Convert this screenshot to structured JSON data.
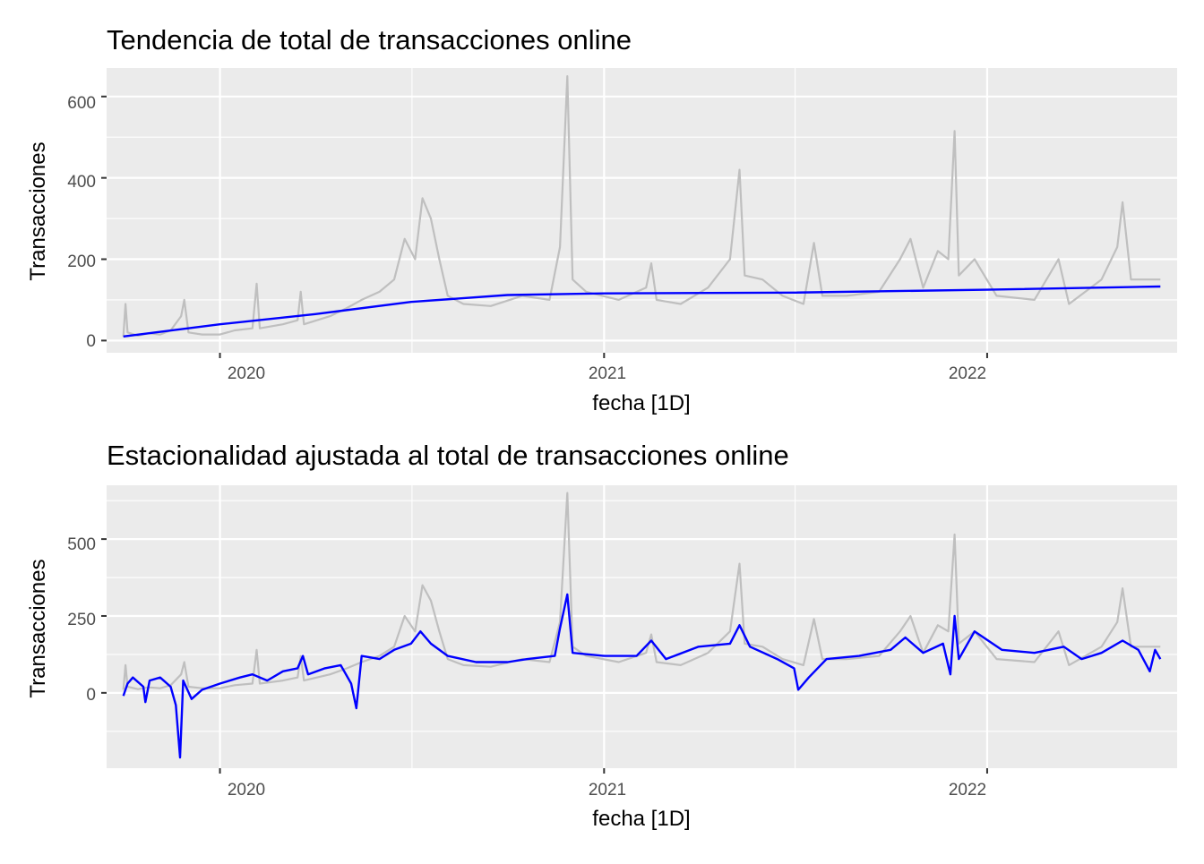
{
  "charts": [
    {
      "title": "Tendencia de total de transacciones online",
      "xlabel": "fecha [1D]",
      "ylabel": "Transacciones",
      "yticks": [
        "0",
        "200",
        "400",
        "600"
      ],
      "xticks": [
        "2020",
        "2021",
        "2022"
      ]
    },
    {
      "title": "Estacionalidad ajustada al total de transacciones online",
      "xlabel": "fecha [1D]",
      "ylabel": "Transacciones",
      "yticks": [
        "0",
        "250",
        "500"
      ],
      "xticks": [
        "2020",
        "2021",
        "2022"
      ]
    }
  ],
  "chart_data": [
    {
      "type": "line",
      "title": "Tendencia de total de transacciones online",
      "xlabel": "fecha [1D]",
      "ylabel": "Transacciones",
      "x_range": [
        "2019-09-15",
        "2022-07-01"
      ],
      "ylim": [
        -30,
        670
      ],
      "y_ticks": [
        0,
        200,
        400,
        600
      ],
      "x_ticks": [
        "2020-01-01",
        "2021-01-01",
        "2022-01-01"
      ],
      "grid": true,
      "legend": "none",
      "series": [
        {
          "color": "#bfbfbf",
          "points": [
            [
              "2019-10-01",
              10
            ],
            [
              "2019-10-03",
              90
            ],
            [
              "2019-10-05",
              20
            ],
            [
              "2019-10-15",
              12
            ],
            [
              "2019-10-25",
              18
            ],
            [
              "2019-11-05",
              15
            ],
            [
              "2019-11-15",
              25
            ],
            [
              "2019-11-25",
              60
            ],
            [
              "2019-11-28",
              100
            ],
            [
              "2019-12-02",
              20
            ],
            [
              "2019-12-15",
              15
            ],
            [
              "2020-01-01",
              15
            ],
            [
              "2020-01-15",
              25
            ],
            [
              "2020-02-01",
              30
            ],
            [
              "2020-02-05",
              140
            ],
            [
              "2020-02-08",
              30
            ],
            [
              "2020-03-01",
              40
            ],
            [
              "2020-03-15",
              50
            ],
            [
              "2020-03-18",
              120
            ],
            [
              "2020-03-21",
              40
            ],
            [
              "2020-04-15",
              60
            ],
            [
              "2020-05-01",
              80
            ],
            [
              "2020-05-15",
              100
            ],
            [
              "2020-06-01",
              120
            ],
            [
              "2020-06-15",
              150
            ],
            [
              "2020-06-25",
              250
            ],
            [
              "2020-07-05",
              200
            ],
            [
              "2020-07-12",
              350
            ],
            [
              "2020-07-20",
              300
            ],
            [
              "2020-07-28",
              200
            ],
            [
              "2020-08-05",
              110
            ],
            [
              "2020-08-20",
              90
            ],
            [
              "2020-09-15",
              85
            ],
            [
              "2020-10-15",
              110
            ],
            [
              "2020-11-10",
              100
            ],
            [
              "2020-11-20",
              230
            ],
            [
              "2020-11-27",
              650
            ],
            [
              "2020-12-02",
              150
            ],
            [
              "2020-12-15",
              120
            ],
            [
              "2021-01-15",
              100
            ],
            [
              "2021-02-10",
              130
            ],
            [
              "2021-02-15",
              190
            ],
            [
              "2021-02-20",
              100
            ],
            [
              "2021-03-15",
              90
            ],
            [
              "2021-04-10",
              130
            ],
            [
              "2021-05-01",
              200
            ],
            [
              "2021-05-10",
              420
            ],
            [
              "2021-05-15",
              160
            ],
            [
              "2021-06-01",
              150
            ],
            [
              "2021-06-20",
              110
            ],
            [
              "2021-07-10",
              90
            ],
            [
              "2021-07-20",
              240
            ],
            [
              "2021-07-28",
              110
            ],
            [
              "2021-08-20",
              110
            ],
            [
              "2021-09-20",
              120
            ],
            [
              "2021-10-10",
              200
            ],
            [
              "2021-10-20",
              250
            ],
            [
              "2021-11-01",
              130
            ],
            [
              "2021-11-15",
              220
            ],
            [
              "2021-11-25",
              200
            ],
            [
              "2021-12-01",
              515
            ],
            [
              "2021-12-05",
              160
            ],
            [
              "2021-12-20",
              200
            ],
            [
              "2022-01-10",
              110
            ],
            [
              "2022-02-15",
              100
            ],
            [
              "2022-03-10",
              200
            ],
            [
              "2022-03-20",
              90
            ],
            [
              "2022-04-20",
              150
            ],
            [
              "2022-05-05",
              230
            ],
            [
              "2022-05-10",
              340
            ],
            [
              "2022-05-18",
              150
            ],
            [
              "2022-06-15",
              150
            ]
          ]
        },
        {
          "color": "#0000ff",
          "points": [
            [
              "2019-10-01",
              10
            ],
            [
              "2020-01-01",
              40
            ],
            [
              "2020-04-01",
              65
            ],
            [
              "2020-07-01",
              95
            ],
            [
              "2020-10-01",
              112
            ],
            [
              "2021-01-01",
              116
            ],
            [
              "2021-07-01",
              118
            ],
            [
              "2022-01-01",
              125
            ],
            [
              "2022-06-15",
              133
            ]
          ]
        }
      ]
    },
    {
      "type": "line",
      "title": "Estacionalidad ajustada al total de transacciones online",
      "xlabel": "fecha [1D]",
      "ylabel": "Transacciones",
      "x_range": [
        "2019-09-15",
        "2022-07-01"
      ],
      "ylim": [
        -245,
        675
      ],
      "y_ticks": [
        0,
        250,
        500
      ],
      "x_ticks": [
        "2020-01-01",
        "2021-01-01",
        "2022-01-01"
      ],
      "grid": true,
      "legend": "none",
      "series": [
        {
          "color": "#bfbfbf",
          "points": [
            [
              "2019-10-01",
              10
            ],
            [
              "2019-10-03",
              90
            ],
            [
              "2019-10-05",
              20
            ],
            [
              "2019-10-15",
              12
            ],
            [
              "2019-10-25",
              18
            ],
            [
              "2019-11-05",
              15
            ],
            [
              "2019-11-15",
              25
            ],
            [
              "2019-11-25",
              60
            ],
            [
              "2019-11-28",
              100
            ],
            [
              "2019-12-02",
              20
            ],
            [
              "2019-12-15",
              15
            ],
            [
              "2020-01-01",
              15
            ],
            [
              "2020-01-15",
              25
            ],
            [
              "2020-02-01",
              30
            ],
            [
              "2020-02-05",
              140
            ],
            [
              "2020-02-08",
              30
            ],
            [
              "2020-03-01",
              40
            ],
            [
              "2020-03-15",
              50
            ],
            [
              "2020-03-18",
              120
            ],
            [
              "2020-03-21",
              40
            ],
            [
              "2020-04-15",
              60
            ],
            [
              "2020-05-01",
              80
            ],
            [
              "2020-05-15",
              100
            ],
            [
              "2020-06-01",
              120
            ],
            [
              "2020-06-15",
              150
            ],
            [
              "2020-06-25",
              250
            ],
            [
              "2020-07-05",
              200
            ],
            [
              "2020-07-12",
              350
            ],
            [
              "2020-07-20",
              300
            ],
            [
              "2020-07-28",
              200
            ],
            [
              "2020-08-05",
              110
            ],
            [
              "2020-08-20",
              90
            ],
            [
              "2020-09-15",
              85
            ],
            [
              "2020-10-15",
              110
            ],
            [
              "2020-11-10",
              100
            ],
            [
              "2020-11-20",
              230
            ],
            [
              "2020-11-27",
              650
            ],
            [
              "2020-12-02",
              150
            ],
            [
              "2020-12-15",
              120
            ],
            [
              "2021-01-15",
              100
            ],
            [
              "2021-02-10",
              130
            ],
            [
              "2021-02-15",
              190
            ],
            [
              "2021-02-20",
              100
            ],
            [
              "2021-03-15",
              90
            ],
            [
              "2021-04-10",
              130
            ],
            [
              "2021-05-01",
              200
            ],
            [
              "2021-05-10",
              420
            ],
            [
              "2021-05-15",
              160
            ],
            [
              "2021-06-01",
              150
            ],
            [
              "2021-06-20",
              110
            ],
            [
              "2021-07-10",
              90
            ],
            [
              "2021-07-20",
              240
            ],
            [
              "2021-07-28",
              110
            ],
            [
              "2021-08-20",
              110
            ],
            [
              "2021-09-20",
              120
            ],
            [
              "2021-10-10",
              200
            ],
            [
              "2021-10-20",
              250
            ],
            [
              "2021-11-01",
              130
            ],
            [
              "2021-11-15",
              220
            ],
            [
              "2021-11-25",
              200
            ],
            [
              "2021-12-01",
              515
            ],
            [
              "2021-12-05",
              160
            ],
            [
              "2021-12-20",
              200
            ],
            [
              "2022-01-10",
              110
            ],
            [
              "2022-02-15",
              100
            ],
            [
              "2022-03-10",
              200
            ],
            [
              "2022-03-20",
              90
            ],
            [
              "2022-04-20",
              150
            ],
            [
              "2022-05-05",
              230
            ],
            [
              "2022-05-10",
              340
            ],
            [
              "2022-05-18",
              150
            ],
            [
              "2022-06-15",
              150
            ]
          ]
        },
        {
          "color": "#0000ff",
          "points": [
            [
              "2019-10-01",
              -10
            ],
            [
              "2019-10-05",
              30
            ],
            [
              "2019-10-10",
              50
            ],
            [
              "2019-10-20",
              20
            ],
            [
              "2019-10-22",
              -30
            ],
            [
              "2019-10-26",
              40
            ],
            [
              "2019-11-05",
              50
            ],
            [
              "2019-11-15",
              20
            ],
            [
              "2019-11-20",
              -40
            ],
            [
              "2019-11-24",
              -210
            ],
            [
              "2019-11-27",
              40
            ],
            [
              "2019-12-05",
              -20
            ],
            [
              "2019-12-15",
              10
            ],
            [
              "2020-01-01",
              30
            ],
            [
              "2020-01-20",
              50
            ],
            [
              "2020-02-01",
              60
            ],
            [
              "2020-02-15",
              40
            ],
            [
              "2020-03-01",
              70
            ],
            [
              "2020-03-15",
              80
            ],
            [
              "2020-03-20",
              120
            ],
            [
              "2020-03-25",
              60
            ],
            [
              "2020-04-10",
              80
            ],
            [
              "2020-04-25",
              90
            ],
            [
              "2020-05-05",
              30
            ],
            [
              "2020-05-10",
              -50
            ],
            [
              "2020-05-15",
              120
            ],
            [
              "2020-06-01",
              110
            ],
            [
              "2020-06-15",
              140
            ],
            [
              "2020-07-01",
              160
            ],
            [
              "2020-07-10",
              200
            ],
            [
              "2020-07-20",
              160
            ],
            [
              "2020-08-05",
              120
            ],
            [
              "2020-09-01",
              100
            ],
            [
              "2020-10-01",
              100
            ],
            [
              "2020-10-20",
              110
            ],
            [
              "2020-11-15",
              120
            ],
            [
              "2020-11-20",
              210
            ],
            [
              "2020-11-27",
              320
            ],
            [
              "2020-12-02",
              130
            ],
            [
              "2021-01-01",
              120
            ],
            [
              "2021-02-01",
              120
            ],
            [
              "2021-02-15",
              170
            ],
            [
              "2021-03-01",
              110
            ],
            [
              "2021-04-01",
              150
            ],
            [
              "2021-05-01",
              160
            ],
            [
              "2021-05-10",
              220
            ],
            [
              "2021-05-20",
              150
            ],
            [
              "2021-06-15",
              110
            ],
            [
              "2021-07-01",
              80
            ],
            [
              "2021-07-05",
              10
            ],
            [
              "2021-07-15",
              50
            ],
            [
              "2021-08-01",
              110
            ],
            [
              "2021-09-01",
              120
            ],
            [
              "2021-10-01",
              140
            ],
            [
              "2021-10-15",
              180
            ],
            [
              "2021-11-01",
              130
            ],
            [
              "2021-11-20",
              160
            ],
            [
              "2021-11-27",
              60
            ],
            [
              "2021-12-01",
              250
            ],
            [
              "2021-12-05",
              110
            ],
            [
              "2021-12-20",
              200
            ],
            [
              "2022-01-15",
              140
            ],
            [
              "2022-02-15",
              130
            ],
            [
              "2022-03-15",
              150
            ],
            [
              "2022-04-01",
              110
            ],
            [
              "2022-04-20",
              130
            ],
            [
              "2022-05-10",
              170
            ],
            [
              "2022-05-25",
              140
            ],
            [
              "2022-06-05",
              70
            ],
            [
              "2022-06-10",
              140
            ],
            [
              "2022-06-15",
              110
            ]
          ]
        }
      ]
    }
  ]
}
